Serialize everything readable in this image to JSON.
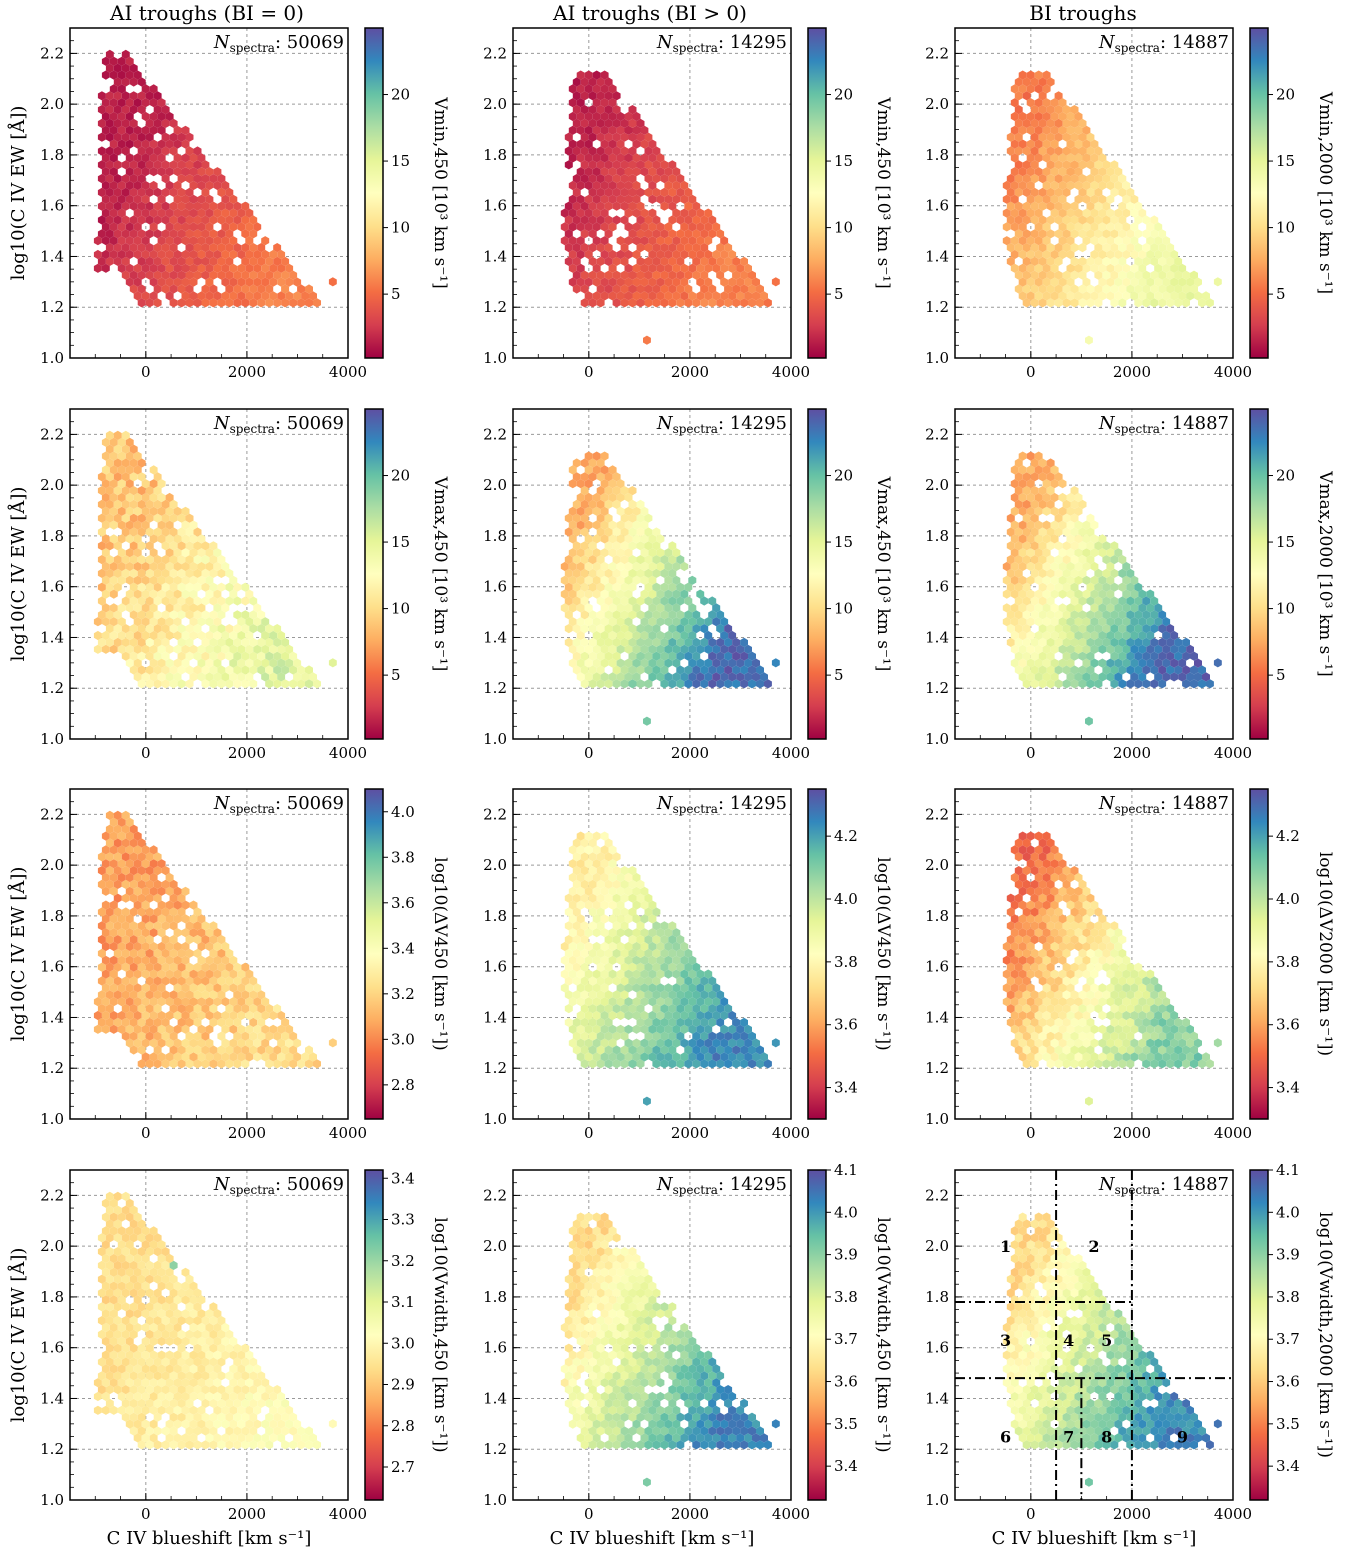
{
  "colors": {
    "colormap": [
      "#9e0142",
      "#d53e4f",
      "#f46d43",
      "#fdae61",
      "#fee08b",
      "#ffffbf",
      "#e6f598",
      "#abdda4",
      "#66c2a5",
      "#3288bd",
      "#5e4fa2"
    ],
    "grid": "#9a9a9a",
    "frame": "#000000"
  },
  "column_titles": [
    "AI troughs (BI = 0)",
    "AI troughs (BI > 0)",
    "BI troughs"
  ],
  "ylabel": "log10(C IV EW [Å])",
  "xlabel": "C IV blueshift [km s⁻¹]",
  "chart_data": {
    "type": "hexbin",
    "x_axis": {
      "range": [
        -1500,
        4000
      ],
      "ticks": [
        0,
        2000,
        4000
      ],
      "tick_labels": [
        "0",
        "2000",
        "4000"
      ]
    },
    "y_axis": {
      "range": [
        1.0,
        2.3
      ],
      "ticks": [
        1.0,
        1.2,
        1.4,
        1.6,
        1.8,
        2.0,
        2.2
      ],
      "tick_labels": [
        "1.0",
        "1.2",
        "1.4",
        "1.6",
        "1.8",
        "2.0",
        "2.2"
      ]
    },
    "grid": true,
    "panels": [
      {
        "sample": "AI troughs (BI = 0)",
        "n_spectra_label": "N",
        "n_spectra_sub": "spectra",
        "n_spectra": "50069",
        "color_quantity": "V_min,450 [10³ km s⁻¹]",
        "cbar_label": "Vmin,450 [10³ km s⁻¹]",
        "cbar_range": [
          0.2,
          25
        ],
        "cbar_ticks": [
          "5",
          "10",
          "15",
          "20"
        ],
        "cbar_tick_values": [
          5,
          10,
          15,
          20
        ],
        "trend": "vmin"
      },
      {
        "sample": "AI troughs (BI > 0)",
        "n_spectra_label": "N",
        "n_spectra_sub": "spectra",
        "n_spectra": "14295",
        "color_quantity": "V_min,450 [10³ km s⁻¹]",
        "cbar_label": "Vmin,450 [10³ km s⁻¹]",
        "cbar_range": [
          0.2,
          25
        ],
        "cbar_ticks": [
          "5",
          "10",
          "15",
          "20"
        ],
        "cbar_tick_values": [
          5,
          10,
          15,
          20
        ],
        "trend": "vmin"
      },
      {
        "sample": "BI troughs",
        "n_spectra_label": "N",
        "n_spectra_sub": "spectra",
        "n_spectra": "14887",
        "color_quantity": "V_min,2000 [10³ km s⁻¹]",
        "cbar_label": "Vmin,2000 [10³ km s⁻¹]",
        "cbar_range": [
          0.2,
          25
        ],
        "cbar_ticks": [
          "5",
          "10",
          "15",
          "20"
        ],
        "cbar_tick_values": [
          5,
          10,
          15,
          20
        ],
        "trend": "vmin_bi"
      },
      {
        "sample": "AI troughs (BI = 0)",
        "n_spectra_label": "N",
        "n_spectra_sub": "spectra",
        "n_spectra": "50069",
        "color_quantity": "V_max,450 [10³ km s⁻¹]",
        "cbar_label": "Vmax,450 [10³ km s⁻¹]",
        "cbar_range": [
          0.2,
          25
        ],
        "cbar_ticks": [
          "5",
          "10",
          "15",
          "20"
        ],
        "cbar_tick_values": [
          5,
          10,
          15,
          20
        ],
        "trend": "vmax_ai"
      },
      {
        "sample": "AI troughs (BI > 0)",
        "n_spectra_label": "N",
        "n_spectra_sub": "spectra",
        "n_spectra": "14295",
        "color_quantity": "V_max,450 [10³ km s⁻¹]",
        "cbar_label": "Vmax,450 [10³ km s⁻¹]",
        "cbar_range": [
          0.2,
          25
        ],
        "cbar_ticks": [
          "5",
          "10",
          "15",
          "20"
        ],
        "cbar_tick_values": [
          5,
          10,
          15,
          20
        ],
        "trend": "vmax"
      },
      {
        "sample": "BI troughs",
        "n_spectra_label": "N",
        "n_spectra_sub": "spectra",
        "n_spectra": "14887",
        "color_quantity": "V_max,2000 [10³ km s⁻¹]",
        "cbar_label": "Vmax,2000 [10³ km s⁻¹]",
        "cbar_range": [
          0.2,
          25
        ],
        "cbar_ticks": [
          "5",
          "10",
          "15",
          "20"
        ],
        "cbar_tick_values": [
          5,
          10,
          15,
          20
        ],
        "trend": "vmax"
      },
      {
        "sample": "AI troughs (BI = 0)",
        "n_spectra_label": "N",
        "n_spectra_sub": "spectra",
        "n_spectra": "50069",
        "color_quantity": "log10(ΔV_450 [km s⁻¹])",
        "cbar_label": "log10(ΔV450 [km s⁻¹])",
        "cbar_range": [
          2.65,
          4.1
        ],
        "cbar_ticks": [
          "2.8",
          "3.0",
          "3.2",
          "3.4",
          "3.6",
          "3.8",
          "4.0"
        ],
        "cbar_tick_values": [
          2.8,
          3.0,
          3.2,
          3.4,
          3.6,
          3.8,
          4.0
        ],
        "trend": "dv_ai"
      },
      {
        "sample": "AI troughs (BI > 0)",
        "n_spectra_label": "N",
        "n_spectra_sub": "spectra",
        "n_spectra": "14295",
        "color_quantity": "log10(ΔV_450 [km s⁻¹])",
        "cbar_label": "log10(ΔV450 [km s⁻¹])",
        "cbar_range": [
          3.3,
          4.35
        ],
        "cbar_ticks": [
          "3.4",
          "3.6",
          "3.8",
          "4.0",
          "4.2"
        ],
        "cbar_tick_values": [
          3.4,
          3.6,
          3.8,
          4.0,
          4.2
        ],
        "trend": "dv"
      },
      {
        "sample": "BI troughs",
        "n_spectra_label": "N",
        "n_spectra_sub": "spectra",
        "n_spectra": "14887",
        "color_quantity": "log10(ΔV_2000 [km s⁻¹])",
        "cbar_label": "log10(ΔV2000 [km s⁻¹])",
        "cbar_range": [
          3.3,
          4.35
        ],
        "cbar_ticks": [
          "3.4",
          "3.6",
          "3.8",
          "4.0",
          "4.2"
        ],
        "cbar_tick_values": [
          3.4,
          3.6,
          3.8,
          4.0,
          4.2
        ],
        "trend": "dv_bi"
      },
      {
        "sample": "AI troughs (BI = 0)",
        "n_spectra_label": "N",
        "n_spectra_sub": "spectra",
        "n_spectra": "50069",
        "color_quantity": "log10(V_width,450 [km s⁻¹])",
        "cbar_label": "log10(Vwidth,450 [km s⁻¹])",
        "cbar_range": [
          2.62,
          3.42
        ],
        "cbar_ticks": [
          "2.7",
          "2.8",
          "2.9",
          "3.0",
          "3.1",
          "3.2",
          "3.3",
          "3.4"
        ],
        "cbar_tick_values": [
          2.7,
          2.8,
          2.9,
          3.0,
          3.1,
          3.2,
          3.3,
          3.4
        ],
        "trend": "width_ai"
      },
      {
        "sample": "AI troughs (BI > 0)",
        "n_spectra_label": "N",
        "n_spectra_sub": "spectra",
        "n_spectra": "14295",
        "color_quantity": "log10(V_width,450 [km s⁻¹])",
        "cbar_label": "log10(Vwidth,450 [km s⁻¹])",
        "cbar_range": [
          3.32,
          4.1
        ],
        "cbar_ticks": [
          "3.4",
          "3.5",
          "3.6",
          "3.7",
          "3.8",
          "3.9",
          "4.0",
          "4.1"
        ],
        "cbar_tick_values": [
          3.4,
          3.5,
          3.6,
          3.7,
          3.8,
          3.9,
          4.0,
          4.1
        ],
        "trend": "width"
      },
      {
        "sample": "BI troughs",
        "n_spectra_label": "N",
        "n_spectra_sub": "spectra",
        "n_spectra": "14887",
        "color_quantity": "log10(V_width,2000 [km s⁻¹])",
        "cbar_label": "log10(Vwidth,2000 [km s⁻¹])",
        "cbar_range": [
          3.32,
          4.1
        ],
        "cbar_ticks": [
          "3.4",
          "3.5",
          "3.6",
          "3.7",
          "3.8",
          "3.9",
          "4.0",
          "4.1"
        ],
        "cbar_tick_values": [
          3.4,
          3.5,
          3.6,
          3.7,
          3.8,
          3.9,
          4.0,
          4.1
        ],
        "trend": "width",
        "region_lines": {
          "vertical_x": [
            500,
            2000
          ],
          "vertical_partial": {
            "x": 1000,
            "y_range": [
              1.0,
              1.48
            ]
          },
          "horizontal_y": [
            1.78,
            1.48
          ],
          "horizontal_partial": {
            "y": 1.78,
            "x_range": [
              -1500,
              2000
            ]
          },
          "region_labels": [
            {
              "text": "1",
              "x": -500,
              "y": 2.0
            },
            {
              "text": "2",
              "x": 1250,
              "y": 2.0
            },
            {
              "text": "3",
              "x": -500,
              "y": 1.63
            },
            {
              "text": "4",
              "x": 750,
              "y": 1.63
            },
            {
              "text": "5",
              "x": 1500,
              "y": 1.63
            },
            {
              "text": "6",
              "x": -500,
              "y": 1.25
            },
            {
              "text": "7",
              "x": 750,
              "y": 1.25
            },
            {
              "text": "8",
              "x": 1500,
              "y": 1.25
            },
            {
              "text": "9",
              "x": 3000,
              "y": 1.25
            }
          ]
        }
      }
    ]
  }
}
